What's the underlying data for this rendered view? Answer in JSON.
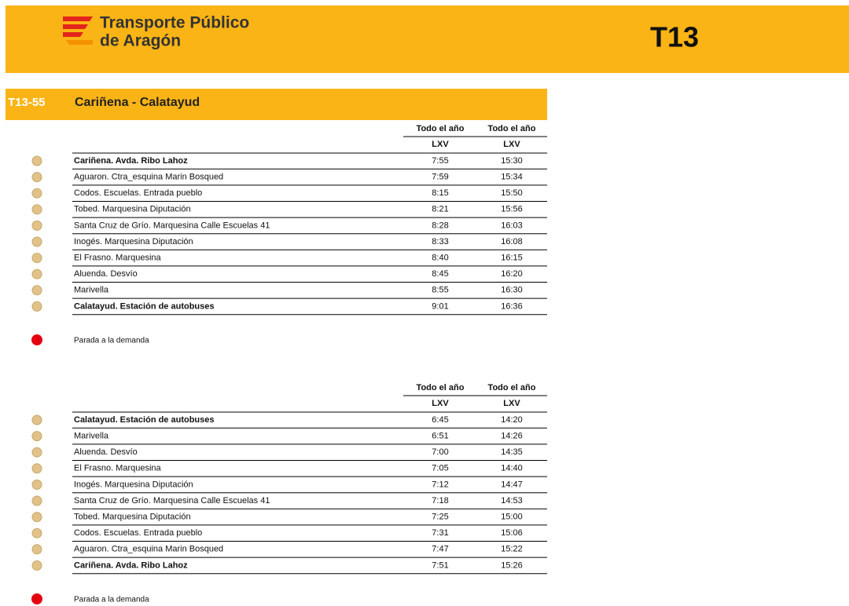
{
  "header": {
    "brand": [
      "Transporte Público",
      "de Aragón"
    ],
    "line_code": "T13"
  },
  "route": {
    "code": "T13-55",
    "name": "Cariñena - Calatayud"
  },
  "tables": [
    {
      "columns": [
        {
          "period": "Todo el año",
          "days": "LXV"
        },
        {
          "period": "Todo el año",
          "days": "LXV"
        }
      ],
      "rows": [
        {
          "stop": "Cariñena. Avda. Ribo Lahoz",
          "bold": true,
          "times": [
            "7:55",
            "15:30"
          ]
        },
        {
          "stop": "Aguaron. Ctra_esquina Marin Bosqued",
          "bold": false,
          "times": [
            "7:59",
            "15:34"
          ]
        },
        {
          "stop": "Codos. Escuelas. Entrada pueblo",
          "bold": false,
          "times": [
            "8:15",
            "15:50"
          ]
        },
        {
          "stop": "Tobed. Marquesina Diputación",
          "bold": false,
          "times": [
            "8:21",
            "15:56"
          ]
        },
        {
          "stop": "Santa Cruz de Grío. Marquesina Calle Escuelas 41",
          "bold": false,
          "times": [
            "8:28",
            "16:03"
          ]
        },
        {
          "stop": "Inogés. Marquesina Diputación",
          "bold": false,
          "times": [
            "8:33",
            "16:08"
          ]
        },
        {
          "stop": "El Frasno. Marquesina",
          "bold": false,
          "times": [
            "8:40",
            "16:15"
          ]
        },
        {
          "stop": "Aluenda. Desvío",
          "bold": false,
          "times": [
            "8:45",
            "16:20"
          ]
        },
        {
          "stop": "Marivella",
          "bold": false,
          "times": [
            "8:55",
            "16:30"
          ]
        },
        {
          "stop": "Calatayud. Estación de autobuses",
          "bold": true,
          "times": [
            "9:01",
            "16:36"
          ]
        }
      ],
      "legend": "Parada a la demanda"
    },
    {
      "columns": [
        {
          "period": "Todo el año",
          "days": "LXV"
        },
        {
          "period": "Todo el año",
          "days": "LXV"
        }
      ],
      "rows": [
        {
          "stop": "Calatayud. Estación de autobuses",
          "bold": true,
          "times": [
            "6:45",
            "14:20"
          ]
        },
        {
          "stop": "Marivella",
          "bold": false,
          "times": [
            "6:51",
            "14:26"
          ]
        },
        {
          "stop": "Aluenda. Desvío",
          "bold": false,
          "times": [
            "7:00",
            "14:35"
          ]
        },
        {
          "stop": "El Frasno. Marquesina",
          "bold": false,
          "times": [
            "7:05",
            "14:40"
          ]
        },
        {
          "stop": "Inogés. Marquesina Diputación",
          "bold": false,
          "times": [
            "7:12",
            "14:47"
          ]
        },
        {
          "stop": "Santa Cruz de Grío. Marquesina Calle Escuelas 41",
          "bold": false,
          "times": [
            "7:18",
            "14:53"
          ]
        },
        {
          "stop": "Tobed. Marquesina Diputación",
          "bold": false,
          "times": [
            "7:25",
            "15:00"
          ]
        },
        {
          "stop": "Codos. Escuelas. Entrada pueblo",
          "bold": false,
          "times": [
            "7:31",
            "15:06"
          ]
        },
        {
          "stop": "Aguaron. Ctra_esquina Marin Bosqued",
          "bold": false,
          "times": [
            "7:47",
            "15:22"
          ]
        },
        {
          "stop": "Cariñena. Avda. Ribo Lahoz",
          "bold": true,
          "times": [
            "7:51",
            "15:26"
          ]
        }
      ],
      "legend": "Parada a la demanda"
    }
  ]
}
